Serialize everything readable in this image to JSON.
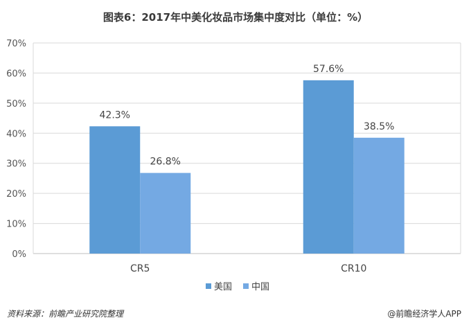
{
  "chart_data": {
    "type": "bar",
    "title": "图表6：2017年中美化妆品市场集中度对比（单位：%）",
    "categories": [
      "CR5",
      "CR10"
    ],
    "series": [
      {
        "name": "美国",
        "values": [
          42.3,
          57.6
        ],
        "labels": [
          "42.3%",
          "57.6%"
        ],
        "color": "#5b9bd5"
      },
      {
        "name": "中国",
        "values": [
          26.8,
          38.5
        ],
        "labels": [
          "26.8%",
          "38.5%"
        ],
        "color": "#74a9e3"
      }
    ],
    "ylim": [
      0,
      70
    ],
    "yticks": [
      "0%",
      "10%",
      "20%",
      "30%",
      "40%",
      "50%",
      "60%",
      "70%"
    ],
    "ytick_values": [
      0,
      10,
      20,
      30,
      40,
      50,
      60,
      70
    ],
    "grid": true,
    "legend_position": "bottom-center"
  },
  "footer": {
    "source": "资料来源：前瞻产业研究院整理",
    "brand": "@前瞻经济学人APP"
  }
}
